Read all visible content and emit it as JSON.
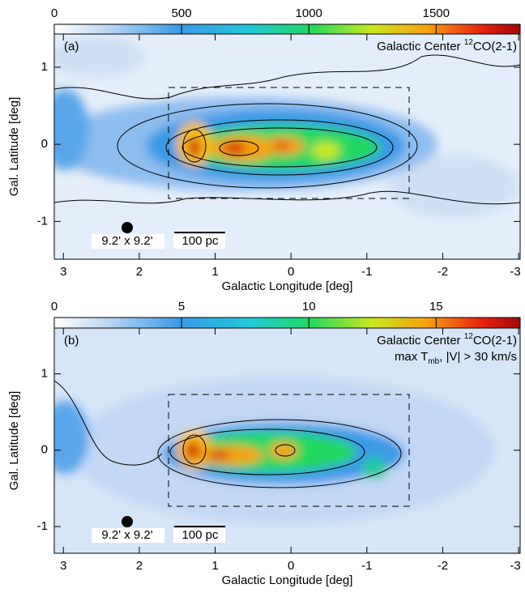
{
  "chart_data": [
    {
      "type": "heatmap",
      "panel_label": "(a)",
      "title_prefix": "Galactic Center ",
      "title_sup": "12",
      "title_main": "CO(2-1)",
      "clim": [
        0,
        1830
      ],
      "cticks": [
        0,
        500,
        1000,
        1500
      ],
      "xlim": [
        3.12,
        -3.02
      ],
      "xticks": [
        3,
        2,
        1,
        0,
        -1,
        -2,
        -3
      ],
      "ylim": [
        -1.49,
        1.43
      ],
      "yticks": [
        1,
        0,
        -1
      ],
      "xlabel": "Galactic Longitude [deg]",
      "ylabel": "Gal. Latitude [deg]",
      "beam_label": "9.2' x 9.2'",
      "scale_label": "100 pc"
    },
    {
      "type": "heatmap",
      "panel_label": "(b)",
      "title_prefix": "Galactic Center ",
      "title_sup": "12",
      "title_main": "CO(2-1)",
      "subtitle_prefix": "max T",
      "subtitle_sub": "mb",
      "subtitle_suffix": ", |V| > 30 km/s",
      "clim": [
        0,
        18.3
      ],
      "cticks": [
        0,
        5,
        10,
        15
      ],
      "xlim": [
        3.12,
        -3.02
      ],
      "xticks": [
        3,
        2,
        1,
        0,
        -1,
        -2,
        -3
      ],
      "ylim": [
        -1.35,
        1.6
      ],
      "yticks": [
        1,
        0,
        -1
      ],
      "xlabel": "Galactic Longitude [deg]",
      "ylabel": "Gal. Latitude [deg]",
      "beam_label": "9.2' x 9.2'",
      "scale_label": "100 pc"
    }
  ]
}
